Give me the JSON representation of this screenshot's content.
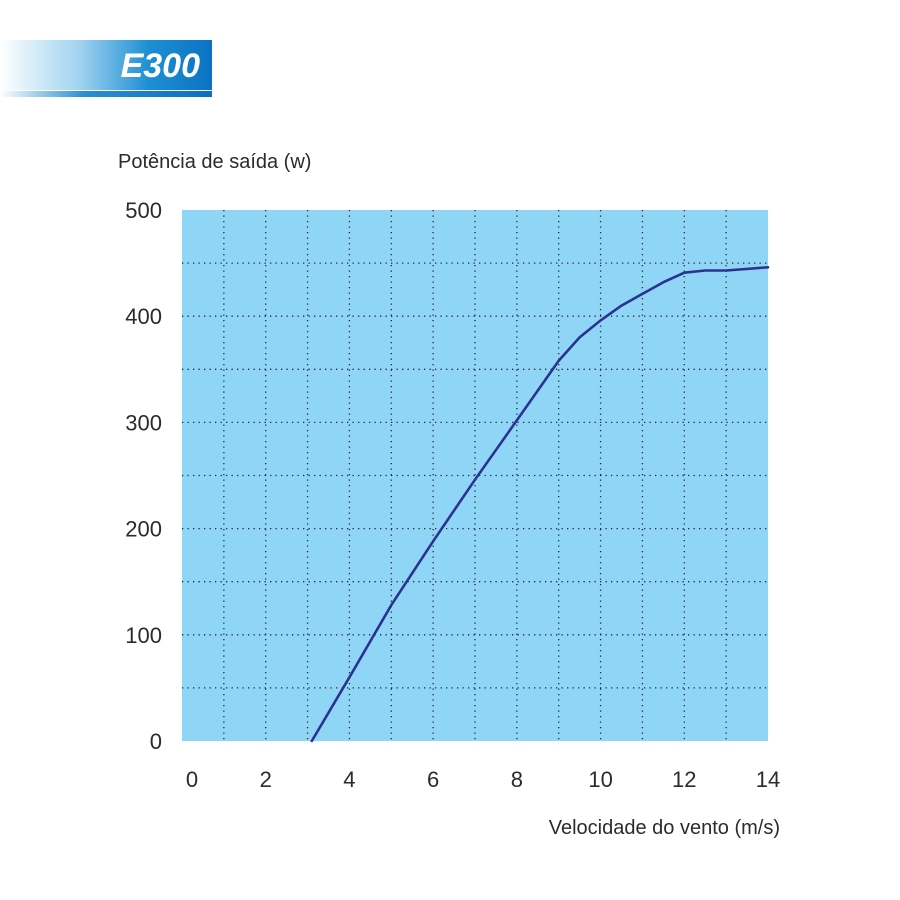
{
  "badge": {
    "label": "E300"
  },
  "colors": {
    "plot_bg": "#8fd5f5",
    "line": "#2b3291",
    "text": "#2b2b2b"
  },
  "chart_data": {
    "type": "line",
    "title": "",
    "ylabel": "Potência de saída (w)",
    "xlabel": "Velocidade do vento (m/s)",
    "xlim": [
      0,
      14
    ],
    "ylim": [
      0,
      500
    ],
    "xticks": [
      "0",
      "2",
      "4",
      "6",
      "8",
      "10",
      "12",
      "14"
    ],
    "yticks": [
      "0",
      "100",
      "200",
      "300",
      "400",
      "500"
    ],
    "grid": true,
    "series": [
      {
        "x": [
          3.1,
          4,
          5,
          6,
          7,
          8,
          9,
          9.5,
          10,
          10.5,
          11,
          11.5,
          12,
          12.5,
          13,
          14
        ],
        "y": [
          0,
          60,
          128,
          188,
          246,
          302,
          358,
          380,
          396,
          410,
          421,
          432,
          441,
          443,
          443,
          446
        ]
      }
    ]
  }
}
